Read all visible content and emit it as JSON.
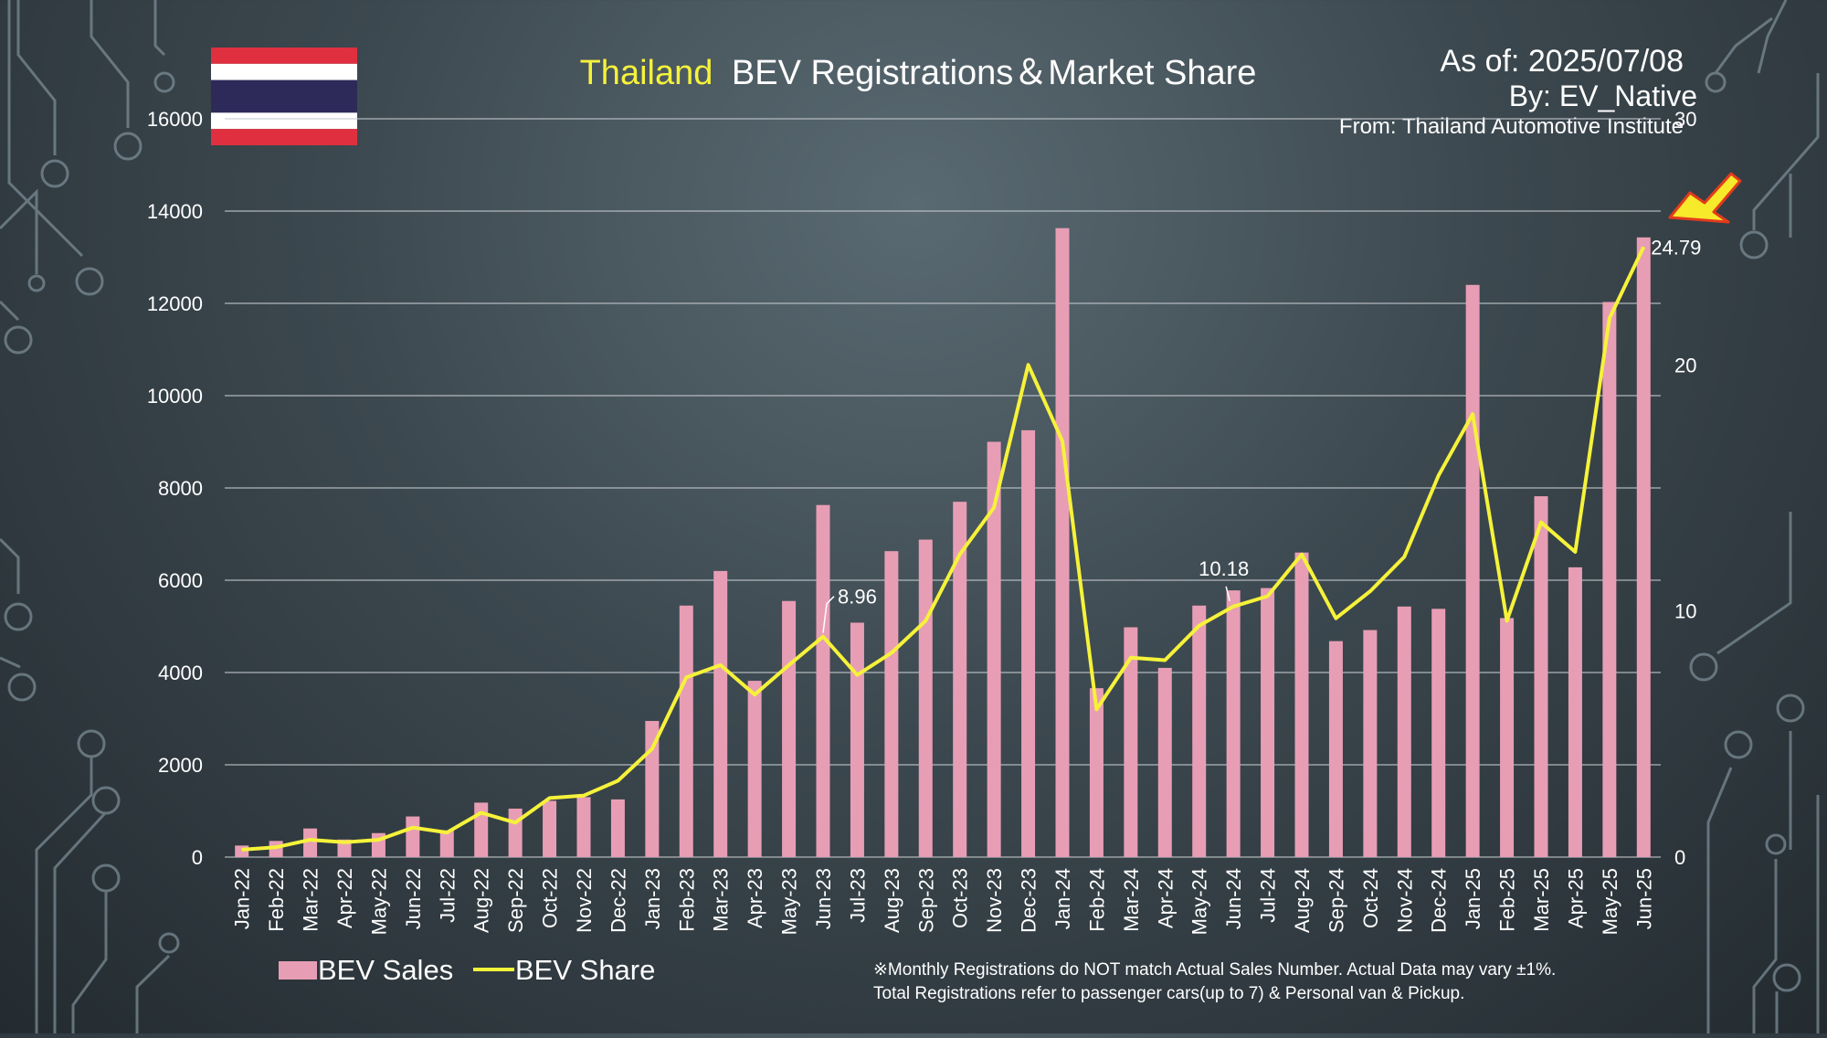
{
  "header": {
    "title_country": "Thailand",
    "title_rest": "BEV Registrations＆Market Share",
    "as_of": "As of: 2025/07/08",
    "by": "By: EV_Native",
    "source": "From: Thailand Automotive Institute"
  },
  "flag": {
    "name": "thailand-flag",
    "colors": [
      "#e03040",
      "#ffffff",
      "#2d2a5a",
      "#ffffff",
      "#e03040"
    ]
  },
  "colors": {
    "bar": "#e79eb4",
    "line": "#f6f23a",
    "title_country": "#f6f23a",
    "text": "#ffffff",
    "grid": "#c5cbd0",
    "arrow_fill": "#f6ea2a",
    "arrow_stroke": "#e23b1d"
  },
  "legend": {
    "bar_label": "BEV Sales",
    "line_label": "BEV Share"
  },
  "footnote": {
    "line1": "※Monthly Registrations do NOT match Actual Sales Number. Actual Data may vary ±1%.",
    "line2": "Total Registrations refer to passenger cars(up to 7) & Personal van & Pickup."
  },
  "chart_data": {
    "type": "bar",
    "title": "Thailand BEV Registrations＆Market Share",
    "categories": [
      "Jan-22",
      "Feb-22",
      "Mar-22",
      "Apr-22",
      "May-22",
      "Jun-22",
      "Jul-22",
      "Aug-22",
      "Sep-22",
      "Oct-22",
      "Nov-22",
      "Dec-22",
      "Jan-23",
      "Feb-23",
      "Mar-23",
      "Apr-23",
      "May-23",
      "Jun-23",
      "Jul-23",
      "Aug-23",
      "Sep-23",
      "Oct-23",
      "Nov-23",
      "Dec-23",
      "Jan-24",
      "Feb-24",
      "Mar-24",
      "Apr-24",
      "May-24",
      "Jun-24",
      "Jul-24",
      "Aug-24",
      "Sep-24",
      "Oct-24",
      "Nov-24",
      "Dec-24",
      "Jan-25",
      "Feb-25",
      "Mar-25",
      "Apr-25",
      "May-25",
      "Jun-25"
    ],
    "series": [
      {
        "name": "BEV Sales",
        "type": "bar",
        "axis": "left",
        "values": [
          250,
          350,
          620,
          380,
          520,
          880,
          580,
          1180,
          1050,
          1220,
          1300,
          1250,
          2950,
          5450,
          6200,
          3820,
          5550,
          7630,
          5080,
          6630,
          6880,
          7700,
          9000,
          9250,
          13630,
          3660,
          4980,
          4100,
          5450,
          5780,
          5830,
          6600,
          4680,
          4920,
          5430,
          5380,
          12400,
          5180,
          7820,
          6280,
          12030,
          13430
        ]
      },
      {
        "name": "BEV Share",
        "type": "line",
        "axis": "right",
        "values": [
          0.3,
          0.4,
          0.7,
          0.6,
          0.7,
          1.2,
          1.0,
          1.8,
          1.4,
          2.4,
          2.5,
          3.1,
          4.4,
          7.3,
          7.8,
          6.6,
          7.8,
          8.96,
          7.4,
          8.3,
          9.6,
          12.3,
          14.2,
          20.0,
          16.9,
          6.0,
          8.1,
          8.0,
          9.4,
          10.18,
          10.6,
          12.3,
          9.7,
          10.8,
          12.2,
          15.5,
          18.0,
          9.6,
          13.6,
          12.4,
          21.9,
          24.79
        ]
      }
    ],
    "data_labels": [
      {
        "index": 17,
        "text": "8.96"
      },
      {
        "index": 29,
        "text": "10.18"
      },
      {
        "index": 41,
        "text": "24.79"
      }
    ],
    "ylim_left": [
      0,
      16000
    ],
    "yticks_left": [
      0,
      2000,
      4000,
      6000,
      8000,
      10000,
      12000,
      14000,
      16000
    ],
    "ylim_right": [
      0,
      30
    ],
    "yticks_right": [
      0,
      10,
      20,
      30
    ],
    "grid": true,
    "legend_position": "bottom-left"
  }
}
